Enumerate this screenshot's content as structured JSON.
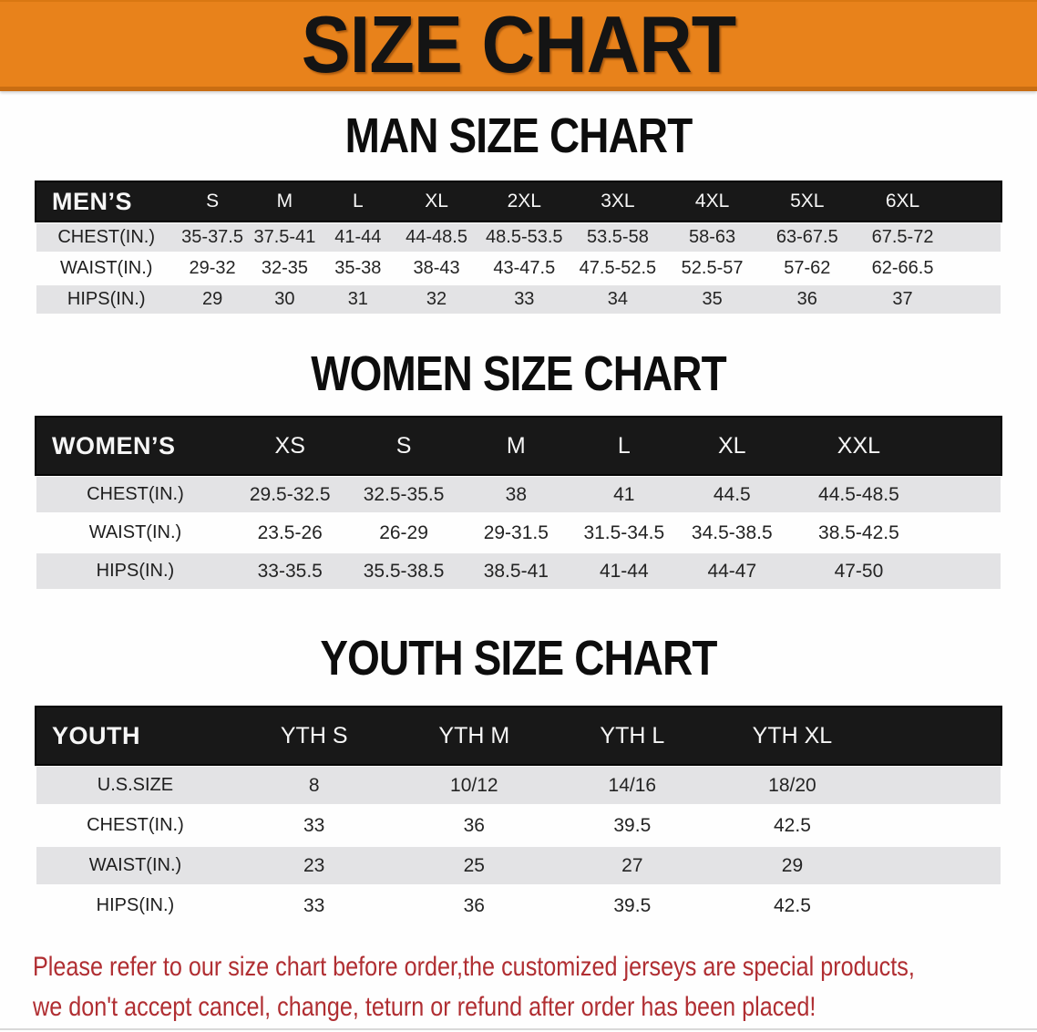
{
  "banner": {
    "title": "SIZE CHART"
  },
  "sections": [
    {
      "id": "men",
      "title": "MAN SIZE CHART",
      "table": {
        "corner_label": "MEN’S",
        "sizes": [
          "S",
          "M",
          "L",
          "XL",
          "2XL",
          "3XL",
          "4XL",
          "5XL",
          "6XL"
        ],
        "rows": [
          {
            "label": "CHEST(IN.)",
            "values": [
              "35-37.5",
              "37.5-41",
              "41-44",
              "44-48.5",
              "48.5-53.5",
              "53.5-58",
              "58-63",
              "63-67.5",
              "67.5-72"
            ]
          },
          {
            "label": "WAIST(IN.)",
            "values": [
              "29-32",
              "32-35",
              "35-38",
              "38-43",
              "43-47.5",
              "47.5-52.5",
              "52.5-57",
              "57-62",
              "62-66.5"
            ]
          },
          {
            "label": "HIPS(IN.)",
            "values": [
              "29",
              "30",
              "31",
              "32",
              "33",
              "34",
              "35",
              "36",
              "37"
            ]
          }
        ]
      }
    },
    {
      "id": "women",
      "title": "WOMEN SIZE CHART",
      "table": {
        "corner_label": "WOMEN’S",
        "sizes": [
          "XS",
          "S",
          "M",
          "L",
          "XL",
          "XXL"
        ],
        "rows": [
          {
            "label": "CHEST(IN.)",
            "values": [
              "29.5-32.5",
              "32.5-35.5",
              "38",
              "41",
              "44.5",
              "44.5-48.5"
            ]
          },
          {
            "label": "WAIST(IN.)",
            "values": [
              "23.5-26",
              "26-29",
              "29-31.5",
              "31.5-34.5",
              "34.5-38.5",
              "38.5-42.5"
            ]
          },
          {
            "label": "HIPS(IN.)",
            "values": [
              "33-35.5",
              "35.5-38.5",
              "38.5-41",
              "41-44",
              "44-47",
              "47-50"
            ]
          }
        ]
      }
    },
    {
      "id": "youth",
      "title": "YOUTH SIZE CHART",
      "table": {
        "corner_label": "YOUTH",
        "sizes": [
          "YTH S",
          "YTH M",
          "YTH L",
          "YTH XL"
        ],
        "rows": [
          {
            "label": "U.S.SIZE",
            "values": [
              "8",
              "10/12",
              "14/16",
              "18/20"
            ]
          },
          {
            "label": "CHEST(IN.)",
            "values": [
              "33",
              "36",
              "39.5",
              "42.5"
            ]
          },
          {
            "label": "WAIST(IN.)",
            "values": [
              "23",
              "25",
              "27",
              "29"
            ]
          },
          {
            "label": "HIPS(IN.)",
            "values": [
              "33",
              "36",
              "39.5",
              "42.5"
            ]
          }
        ]
      }
    }
  ],
  "disclaimer": {
    "lines": [
      "Please refer to our size chart before order,the customized jerseys are special products,",
      "we don't accept cancel, change, teturn or refund after order has been placed!"
    ]
  },
  "colors": {
    "banner_orange": "#e8821b",
    "header_black": "#181818",
    "row_gray": "#e3e3e5",
    "row_white": "#fefefe",
    "disclaimer_red": "#b02e32"
  }
}
